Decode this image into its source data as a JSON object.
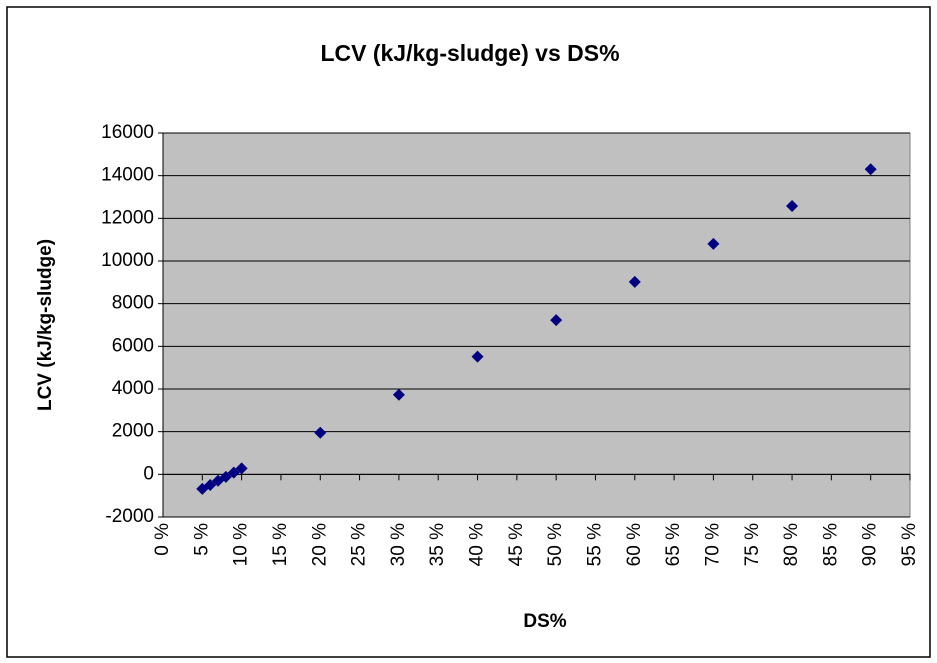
{
  "chart_data": {
    "type": "scatter",
    "title": "LCV (kJ/kg-sludge) vs DS%",
    "x_label": "DS%",
    "y_label": "LCV (kJ/kg-sludge)",
    "series": [
      {
        "color": "#000080",
        "x": [
          5,
          6,
          7,
          8,
          9,
          10,
          20,
          30,
          40,
          50,
          60,
          70,
          80,
          90
        ],
        "values": [
          -680,
          -500,
          -300,
          -120,
          80,
          280,
          1950,
          3730,
          5520,
          7230,
          9020,
          10800,
          12580,
          14300
        ]
      }
    ],
    "xlim": [
      0,
      95
    ],
    "xticks": [
      {
        "value": 0,
        "label": "0 %"
      },
      {
        "value": 5,
        "label": "5 %"
      },
      {
        "value": 10,
        "label": "10 %"
      },
      {
        "value": 15,
        "label": "15 %"
      },
      {
        "value": 20,
        "label": "20 %"
      },
      {
        "value": 25,
        "label": "25 %"
      },
      {
        "value": 30,
        "label": "30 %"
      },
      {
        "value": 35,
        "label": "35 %"
      },
      {
        "value": 40,
        "label": "40 %"
      },
      {
        "value": 45,
        "label": "45 %"
      },
      {
        "value": 50,
        "label": "50 %"
      },
      {
        "value": 55,
        "label": "55 %"
      },
      {
        "value": 60,
        "label": "60 %"
      },
      {
        "value": 65,
        "label": "65 %"
      },
      {
        "value": 70,
        "label": "70 %"
      },
      {
        "value": 75,
        "label": "75 %"
      },
      {
        "value": 80,
        "label": "80 %"
      },
      {
        "value": 85,
        "label": "85 %"
      },
      {
        "value": 90,
        "label": "90 %"
      },
      {
        "value": 95,
        "label": "95 %"
      }
    ],
    "ylim": [
      -2000,
      16000
    ],
    "yticks": [
      -2000,
      0,
      2000,
      4000,
      6000,
      8000,
      10000,
      12000,
      14000,
      16000
    ],
    "grid": true,
    "plot_background": "#c0c0c0"
  }
}
